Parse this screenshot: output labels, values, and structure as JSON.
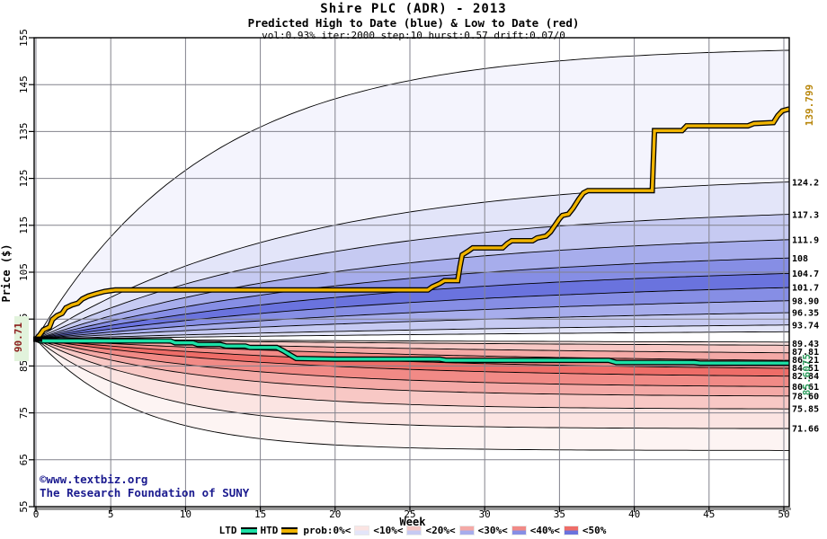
{
  "header": {
    "title": "Shire PLC (ADR) - 2013",
    "subtitle": "Predicted High to Date (blue) &  Low to Date (red)",
    "params": "vol:0.93% iter:2000 step:10 hurst:0.57 drift:0.07/0"
  },
  "copyright": {
    "line1": "©www.textbiz.org",
    "line2": "The Research Foundation of SUNY"
  },
  "legend": {
    "ltd_label": "LTD",
    "htd_label": "HTD",
    "ltd_color": "#1ce0a6",
    "htd_color": "#f0b400",
    "prob_labels": [
      "prob:0%<",
      "<10%<",
      "<20%<",
      "<30%<",
      "<40%<",
      "<50%"
    ]
  },
  "colors": {
    "grid": "#82828c",
    "frame": "#000000",
    "axis_shadow": "#8a8a8a",
    "htd_line": "#f0b400",
    "ltd_line": "#1ce0a6",
    "htd_final_label": "#b8860b",
    "ltd_final_label": "#2f9e5f",
    "start_label": "#8b1a1a",
    "start_label_bg": "#e2f3dc",
    "copyright": "#1b1b8f"
  },
  "chart_data": {
    "type": "area",
    "title": "Shire PLC (ADR) - 2013",
    "xlabel": "Week",
    "ylabel": "Price ($)",
    "xlim": [
      0,
      50.36
    ],
    "ylim": [
      55,
      155
    ],
    "x_ticks": [
      "0",
      "5",
      "10",
      "15",
      "20",
      "25",
      "30",
      "35",
      "40",
      "45",
      "50"
    ],
    "y_ticks": [
      "55",
      "65",
      "75",
      "85",
      "95",
      "105",
      "115",
      "125",
      "135",
      "145",
      "155"
    ],
    "grid": true,
    "start_price": 90.71,
    "start_label": "90.71",
    "htd_final": 139.799,
    "htd_final_label": "139.799",
    "ltd_final": 85.6075,
    "ltd_final_label": "85.6075",
    "high_fan": {
      "colors": [
        "#f4f4fd",
        "#e3e5f9",
        "#c6caf2",
        "#a7adec",
        "#868ee5",
        "#6a73de"
      ],
      "band_levels": [
        0,
        1,
        2,
        3,
        4,
        5,
        4,
        3,
        2,
        1
      ],
      "boundaries": [
        {
          "value": 152.3,
          "label": "",
          "a": 4.3
        },
        {
          "value": 124.2,
          "label": "124.2",
          "a": 2.9
        },
        {
          "value": 117.3,
          "label": "117.3",
          "a": 2.65
        },
        {
          "value": 111.9,
          "label": "111.9",
          "a": 2.4
        },
        {
          "value": 108.0,
          "label": "108",
          "a": 2.2
        },
        {
          "value": 104.7,
          "label": "104.7",
          "a": 2.0
        },
        {
          "value": 101.7,
          "label": "101.7",
          "a": 1.8
        },
        {
          "value": 98.9,
          "label": "98.90",
          "a": 1.6
        },
        {
          "value": 96.35,
          "label": "96.35",
          "a": 1.4
        },
        {
          "value": 93.74,
          "label": "93.74",
          "a": 1.2
        },
        {
          "value": 92.3,
          "label": "",
          "a": 0.9
        }
      ]
    },
    "low_fan": {
      "colors": [
        "#fdf4f3",
        "#fbe4e2",
        "#f8c8c5",
        "#f4a9a6",
        "#f18a86",
        "#ee6d68"
      ],
      "band_levels": [
        1,
        2,
        3,
        4,
        5,
        4,
        3,
        2,
        1,
        0
      ],
      "boundaries": [
        {
          "value": 90.1,
          "label": "",
          "a": 0.9
        },
        {
          "value": 89.43,
          "label": "89.43",
          "a": 1.1
        },
        {
          "value": 87.81,
          "label": "87.81",
          "a": 1.5
        },
        {
          "value": 86.21,
          "label": "86.21",
          "a": 1.9
        },
        {
          "value": 84.51,
          "label": "84.51",
          "a": 2.4
        },
        {
          "value": 82.84,
          "label": "82.84",
          "a": 3.0
        },
        {
          "value": 80.61,
          "label": "80.61",
          "a": 3.7
        },
        {
          "value": 78.6,
          "label": "78.60",
          "a": 4.5
        },
        {
          "value": 75.85,
          "label": "75.85",
          "a": 5.4
        },
        {
          "value": 71.66,
          "label": "71.66",
          "a": 6.4
        },
        {
          "value": 67.0,
          "label": "",
          "a": 7.5
        }
      ]
    },
    "series": [
      {
        "name": "HTD",
        "color": "#f0b400",
        "points": [
          [
            0,
            90.71
          ],
          [
            0.25,
            91.6
          ],
          [
            0.5,
            92.7
          ],
          [
            0.9,
            93.3
          ],
          [
            1.1,
            94.9
          ],
          [
            1.4,
            95.7
          ],
          [
            1.75,
            96.2
          ],
          [
            2.0,
            97.4
          ],
          [
            2.4,
            98.0
          ],
          [
            2.8,
            98.4
          ],
          [
            3.1,
            99.3
          ],
          [
            3.5,
            99.9
          ],
          [
            4.0,
            100.4
          ],
          [
            4.6,
            100.9
          ],
          [
            5.3,
            101.2
          ],
          [
            26.2,
            101.2
          ],
          [
            26.5,
            101.9
          ],
          [
            27.0,
            102.6
          ],
          [
            27.3,
            103.2
          ],
          [
            28.2,
            103.2
          ],
          [
            28.35,
            106.2
          ],
          [
            28.5,
            108.7
          ],
          [
            28.9,
            109.5
          ],
          [
            29.2,
            110.2
          ],
          [
            31.2,
            110.2
          ],
          [
            31.5,
            111.1
          ],
          [
            31.8,
            111.7
          ],
          [
            33.2,
            111.7
          ],
          [
            33.5,
            112.3
          ],
          [
            34.1,
            112.7
          ],
          [
            34.4,
            113.6
          ],
          [
            34.7,
            115.0
          ],
          [
            35.0,
            116.4
          ],
          [
            35.2,
            117.1
          ],
          [
            35.6,
            117.4
          ],
          [
            35.9,
            118.6
          ],
          [
            36.3,
            120.6
          ],
          [
            36.6,
            121.9
          ],
          [
            36.9,
            122.4
          ],
          [
            41.2,
            122.4
          ],
          [
            41.35,
            135.2
          ],
          [
            43.2,
            135.2
          ],
          [
            43.5,
            136.2
          ],
          [
            47.6,
            136.2
          ],
          [
            48.0,
            136.7
          ],
          [
            49.3,
            136.9
          ],
          [
            49.6,
            138.4
          ],
          [
            49.9,
            139.4
          ],
          [
            50.36,
            139.799
          ]
        ]
      },
      {
        "name": "LTD",
        "color": "#1ce0a6",
        "points": [
          [
            0,
            90.71
          ],
          [
            0.3,
            90.35
          ],
          [
            9.0,
            90.35
          ],
          [
            9.3,
            89.95
          ],
          [
            10.5,
            89.95
          ],
          [
            10.8,
            89.6
          ],
          [
            12.3,
            89.6
          ],
          [
            12.7,
            89.25
          ],
          [
            14.0,
            89.25
          ],
          [
            14.3,
            88.95
          ],
          [
            16.1,
            88.95
          ],
          [
            16.5,
            88.3
          ],
          [
            17.4,
            86.6
          ],
          [
            20.0,
            86.45
          ],
          [
            27.0,
            86.45
          ],
          [
            27.4,
            86.2
          ],
          [
            38.3,
            86.2
          ],
          [
            38.8,
            85.75
          ],
          [
            44.0,
            85.75
          ],
          [
            44.4,
            85.6075
          ],
          [
            50.36,
            85.6075
          ]
        ]
      }
    ]
  }
}
